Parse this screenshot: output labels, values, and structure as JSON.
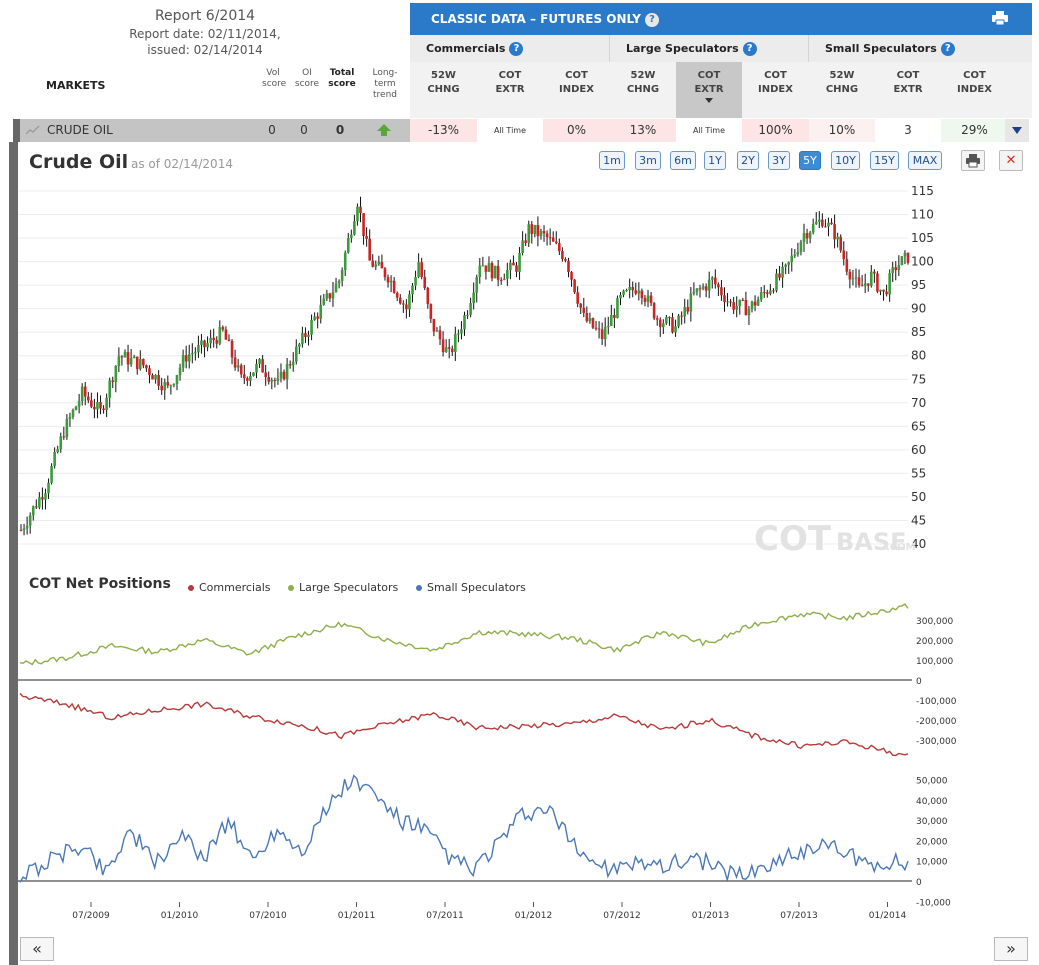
{
  "report": {
    "title": "Report 6/2014",
    "report_date": "Report date: 02/11/2014,",
    "issued": "issued: 02/14/2014"
  },
  "markets_label": "MARKETS",
  "score_headers": {
    "vol": [
      "Vol",
      "score"
    ],
    "oi": [
      "OI",
      "score"
    ],
    "total": [
      "Total",
      "score"
    ],
    "trend": [
      "Long-",
      "term",
      "trend"
    ]
  },
  "classic": {
    "title": "CLASSIC DATA – FUTURES ONLY",
    "groups": [
      "Commercials",
      "Large Speculators",
      "Small Speculators"
    ],
    "subheads": [
      [
        "52W",
        "CHNG"
      ],
      [
        "COT",
        "EXTR"
      ],
      [
        "COT",
        "INDEX"
      ],
      [
        "52W",
        "CHNG"
      ],
      [
        "COT",
        "EXTR"
      ],
      [
        "COT",
        "INDEX"
      ],
      [
        "52W",
        "CHNG"
      ],
      [
        "COT",
        "EXTR"
      ],
      [
        "COT",
        "INDEX"
      ]
    ],
    "selected_subhead": 4
  },
  "market_row": {
    "name": "CRUDE OIL",
    "vol_score": "0",
    "oi_score": "0",
    "total_score": "0",
    "trend": "up",
    "cells": [
      "-13%",
      "All Time",
      "0%",
      "13%",
      "All Time",
      "100%",
      "10%",
      "3",
      "29%"
    ]
  },
  "chart": {
    "title": "Crude Oil",
    "as_of": "as of 02/14/2014",
    "ranges": [
      "1m",
      "3m",
      "6m",
      "1Y",
      "2Y",
      "3Y",
      "5Y",
      "10Y",
      "15Y",
      "MAX"
    ],
    "active_range": "5Y",
    "watermark_bold": "COT",
    "watermark_thin": "BASE",
    "watermark_tld": ".COM",
    "price_ticks": [
      "115",
      "110",
      "105",
      "100",
      "95",
      "90",
      "85",
      "80",
      "75",
      "70",
      "65",
      "60",
      "55",
      "50",
      "45",
      "40"
    ]
  },
  "cot": {
    "title": "COT Net Positions",
    "legend": [
      {
        "label": "Commercials",
        "color": "#b83a3a"
      },
      {
        "label": "Large Speculators",
        "color": "#8fae4a"
      },
      {
        "label": "Small Speculators",
        "color": "#4a78b5"
      }
    ],
    "large_ticks": [
      "300,000",
      "200,000",
      "100,000",
      "0"
    ],
    "comm_ticks": [
      "-100,000",
      "-200,000",
      "-300,000"
    ],
    "small_ticks": [
      "50,000",
      "40,000",
      "30,000",
      "20,000",
      "10,000",
      "0",
      "-10,000"
    ],
    "x_labels": [
      "07/2009",
      "01/2010",
      "07/2010",
      "01/2011",
      "07/2011",
      "01/2012",
      "07/2012",
      "01/2013",
      "07/2013",
      "01/2014"
    ]
  },
  "nav": {
    "prev": "«",
    "next": "»"
  },
  "colors": {
    "up": "#3c9a3c",
    "down": "#cc2424",
    "accent": "#2a7ac9"
  },
  "chart_data": {
    "type": "line",
    "title": "Crude Oil",
    "ylim": [
      40,
      115
    ],
    "x_labels": [
      "07/2009",
      "01/2010",
      "07/2010",
      "01/2011",
      "07/2011",
      "01/2012",
      "07/2012",
      "01/2013",
      "07/2013",
      "01/2014"
    ],
    "price_anchors": [
      [
        0,
        43
      ],
      [
        8,
        52
      ],
      [
        14,
        64
      ],
      [
        20,
        72
      ],
      [
        26,
        68
      ],
      [
        32,
        80
      ],
      [
        40,
        78
      ],
      [
        48,
        73
      ],
      [
        54,
        80
      ],
      [
        60,
        82
      ],
      [
        66,
        85
      ],
      [
        72,
        75
      ],
      [
        78,
        78
      ],
      [
        84,
        74
      ],
      [
        90,
        81
      ],
      [
        96,
        88
      ],
      [
        104,
        96
      ],
      [
        110,
        113
      ],
      [
        114,
        100
      ],
      [
        120,
        97
      ],
      [
        126,
        90
      ],
      [
        130,
        100
      ],
      [
        134,
        87
      ],
      [
        140,
        80
      ],
      [
        146,
        90
      ],
      [
        150,
        100
      ],
      [
        156,
        97
      ],
      [
        162,
        99
      ],
      [
        166,
        107
      ],
      [
        172,
        105
      ],
      [
        178,
        101
      ],
      [
        184,
        88
      ],
      [
        190,
        84
      ],
      [
        196,
        92
      ],
      [
        202,
        95
      ],
      [
        208,
        88
      ],
      [
        214,
        86
      ],
      [
        220,
        93
      ],
      [
        226,
        96
      ],
      [
        232,
        91
      ],
      [
        238,
        90
      ],
      [
        244,
        94
      ],
      [
        250,
        98
      ],
      [
        256,
        106
      ],
      [
        262,
        109
      ],
      [
        266,
        106
      ],
      [
        270,
        99
      ],
      [
        274,
        94
      ],
      [
        278,
        97
      ],
      [
        282,
        93
      ],
      [
        286,
        99
      ],
      [
        290,
        101
      ]
    ],
    "series": [
      {
        "name": "Large Speculators",
        "values": [
          [
            0,
            80000
          ],
          [
            15,
            110000
          ],
          [
            30,
            170000
          ],
          [
            45,
            140000
          ],
          [
            60,
            200000
          ],
          [
            75,
            130000
          ],
          [
            90,
            220000
          ],
          [
            105,
            280000
          ],
          [
            120,
            200000
          ],
          [
            135,
            150000
          ],
          [
            150,
            240000
          ],
          [
            165,
            230000
          ],
          [
            180,
            210000
          ],
          [
            195,
            150000
          ],
          [
            210,
            240000
          ],
          [
            225,
            180000
          ],
          [
            240,
            280000
          ],
          [
            255,
            330000
          ],
          [
            270,
            310000
          ],
          [
            290,
            370000
          ]
        ]
      },
      {
        "name": "Commercials",
        "values": [
          [
            0,
            -80000
          ],
          [
            15,
            -120000
          ],
          [
            30,
            -190000
          ],
          [
            45,
            -150000
          ],
          [
            60,
            -120000
          ],
          [
            75,
            -180000
          ],
          [
            90,
            -220000
          ],
          [
            105,
            -280000
          ],
          [
            120,
            -220000
          ],
          [
            135,
            -170000
          ],
          [
            150,
            -240000
          ],
          [
            165,
            -230000
          ],
          [
            180,
            -220000
          ],
          [
            195,
            -180000
          ],
          [
            210,
            -250000
          ],
          [
            225,
            -200000
          ],
          [
            240,
            -280000
          ],
          [
            255,
            -330000
          ],
          [
            270,
            -310000
          ],
          [
            290,
            -380000
          ]
        ]
      },
      {
        "name": "Small Speculators",
        "values": [
          [
            0,
            2000
          ],
          [
            10,
            10000
          ],
          [
            20,
            18000
          ],
          [
            28,
            5000
          ],
          [
            36,
            25000
          ],
          [
            44,
            8000
          ],
          [
            52,
            22000
          ],
          [
            60,
            12000
          ],
          [
            68,
            30000
          ],
          [
            76,
            10000
          ],
          [
            84,
            26000
          ],
          [
            92,
            15000
          ],
          [
            100,
            35000
          ],
          [
            108,
            50000
          ],
          [
            116,
            42000
          ],
          [
            124,
            30000
          ],
          [
            132,
            25000
          ],
          [
            140,
            12000
          ],
          [
            148,
            5000
          ],
          [
            156,
            18000
          ],
          [
            164,
            32000
          ],
          [
            172,
            35000
          ],
          [
            180,
            20000
          ],
          [
            188,
            8000
          ],
          [
            196,
            5000
          ],
          [
            204,
            10000
          ],
          [
            212,
            8000
          ],
          [
            220,
            12000
          ],
          [
            228,
            6000
          ],
          [
            236,
            3000
          ],
          [
            244,
            8000
          ],
          [
            252,
            12000
          ],
          [
            260,
            18000
          ],
          [
            268,
            15000
          ],
          [
            276,
            8000
          ],
          [
            284,
            10000
          ],
          [
            290,
            8000
          ]
        ]
      }
    ]
  }
}
